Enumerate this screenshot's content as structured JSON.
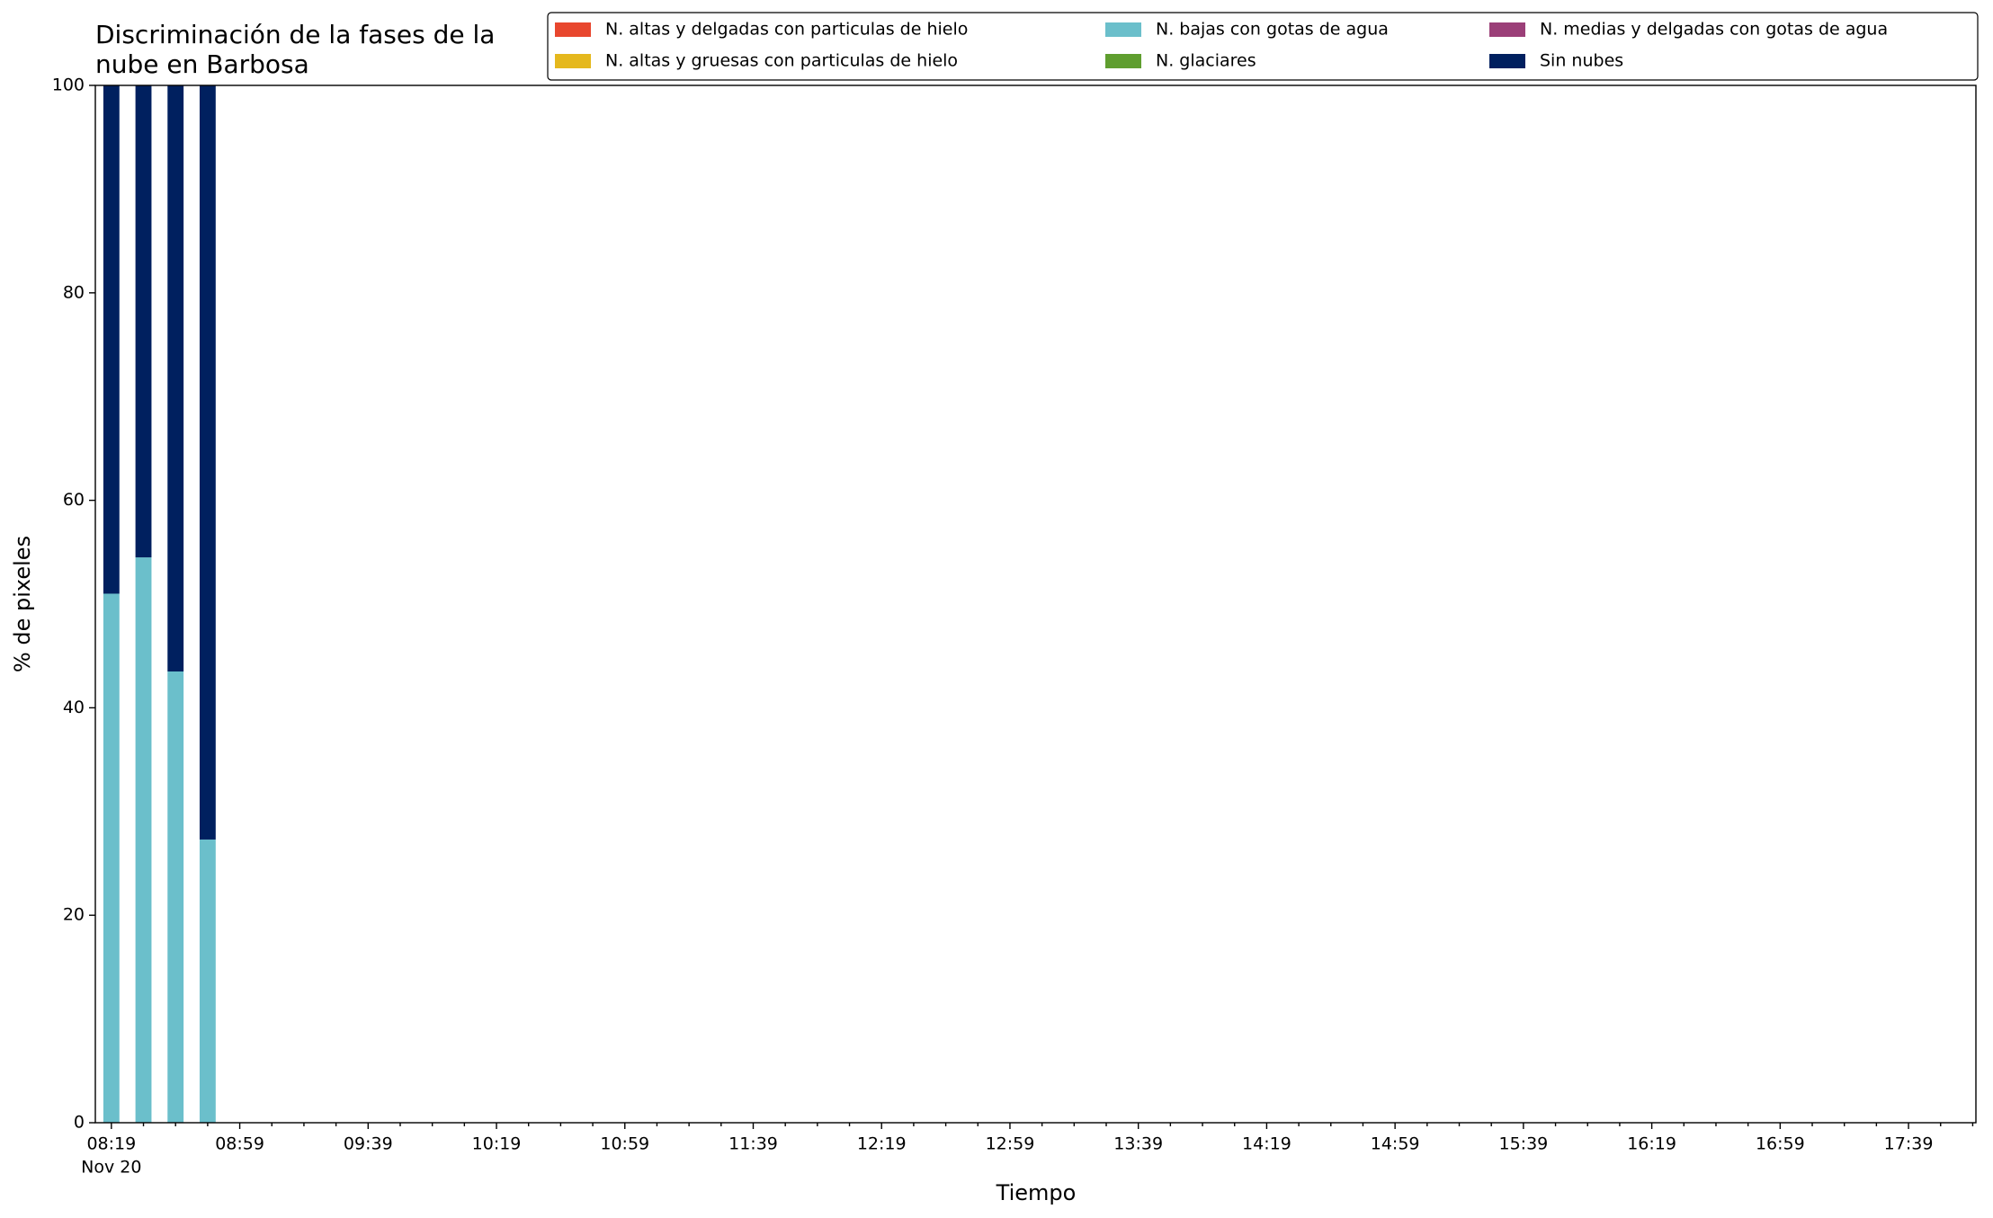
{
  "chart_data": {
    "type": "stacked_bar",
    "title": [
      "Discriminación de la fases de la",
      "nube en Barbosa"
    ],
    "xlabel": "Tiempo",
    "ylabel": "% de pixeles",
    "x": [
      "08:19",
      "08:29",
      "08:39",
      "08:49"
    ],
    "series": [
      {
        "name": "N. altas y delgadas con particulas de hielo",
        "color": "#e8472e",
        "values": [
          0,
          0,
          0,
          0
        ]
      },
      {
        "name": "N. altas y gruesas con particulas de hielo",
        "color": "#e5b81d",
        "values": [
          0,
          0,
          0,
          0
        ]
      },
      {
        "name": "N. bajas con gotas de agua",
        "color": "#6bbfcb",
        "values": [
          51,
          54.5,
          43.5,
          27.3
        ]
      },
      {
        "name": "N. glaciares",
        "color": "#5f9e2f",
        "values": [
          0,
          0,
          0,
          0
        ]
      },
      {
        "name": "N. medias y delgadas con gotas de agua",
        "color": "#9b3f78",
        "values": [
          0,
          0,
          0,
          0
        ]
      },
      {
        "name": "Sin nubes",
        "color": "#00205f",
        "values": [
          49,
          45.5,
          56.5,
          72.7
        ]
      }
    ],
    "xlim": [
      "08:14",
      "18:00"
    ],
    "xticks": [
      "08:19",
      "08:59",
      "09:39",
      "10:19",
      "10:59",
      "11:39",
      "12:19",
      "12:59",
      "13:39",
      "14:19",
      "14:59",
      "15:39",
      "16:19",
      "16:59",
      "17:39"
    ],
    "xtick_sublabel": "Nov 20",
    "xminorticks": [
      "08:29",
      "08:39",
      "08:49",
      "09:09",
      "09:19",
      "09:29",
      "09:49",
      "09:59",
      "10:09",
      "10:29",
      "10:39",
      "10:49",
      "11:09",
      "11:19",
      "11:29",
      "11:49",
      "11:59",
      "12:09",
      "12:29",
      "12:39",
      "12:49",
      "13:09",
      "13:19",
      "13:29",
      "13:49",
      "13:59",
      "14:09",
      "14:29",
      "14:39",
      "14:49",
      "15:09",
      "15:19",
      "15:29",
      "15:49",
      "15:59",
      "16:09",
      "16:29",
      "16:39",
      "16:49",
      "17:09",
      "17:19",
      "17:29",
      "17:49",
      "17:59"
    ],
    "ylim": [
      0,
      100
    ],
    "yticks": [
      0,
      20,
      40,
      60,
      80,
      100
    ],
    "grid": false,
    "legend": "upper right"
  }
}
